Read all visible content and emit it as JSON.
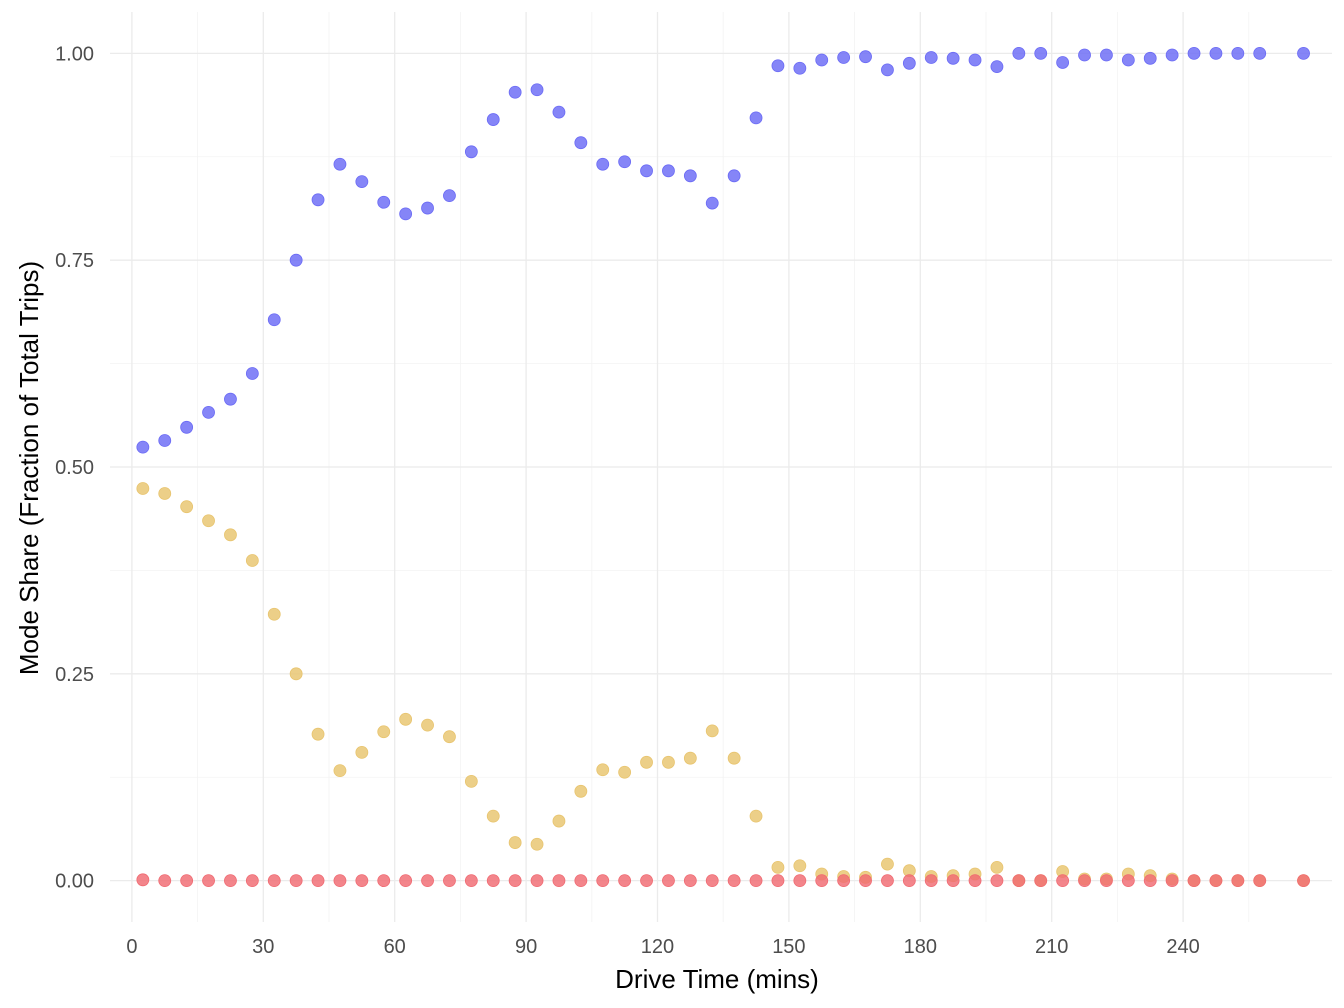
{
  "chart_data": {
    "type": "scatter",
    "title": "",
    "xlabel": "Drive Time (mins)",
    "ylabel": "Mode Share (Fraction of Total Trips)",
    "xlim": [
      -5,
      274
    ],
    "ylim": [
      -0.05,
      1.05
    ],
    "x_ticks": [
      0,
      30,
      60,
      90,
      120,
      150,
      180,
      210,
      240
    ],
    "y_ticks": [
      0,
      0.25,
      0.5,
      0.75,
      1.0
    ],
    "y_tick_labels": [
      "0.00",
      "0.25",
      "0.50",
      "0.75",
      "1.00"
    ],
    "grid": true,
    "legend": "none",
    "x": [
      2.5,
      7.5,
      12.5,
      17.5,
      22.5,
      27.5,
      32.5,
      37.5,
      42.5,
      47.5,
      52.5,
      57.5,
      62.5,
      67.5,
      72.5,
      77.5,
      82.5,
      87.5,
      92.5,
      97.5,
      102.5,
      107.5,
      112.5,
      117.5,
      122.5,
      127.5,
      132.5,
      137.5,
      142.5,
      147.5,
      152.5,
      157.5,
      162.5,
      167.5,
      172.5,
      177.5,
      182.5,
      187.5,
      192.5,
      197.5,
      202.5,
      207.5,
      212.5,
      217.5,
      222.5,
      227.5,
      232.5,
      237.5,
      242.5,
      247.5,
      252.5,
      257.5,
      267.5
    ],
    "series": [
      {
        "color": "#6a6af5",
        "values": [
          0.524,
          0.532,
          0.548,
          0.566,
          0.582,
          0.613,
          0.678,
          0.75,
          0.823,
          0.866,
          0.845,
          0.82,
          0.806,
          0.813,
          0.828,
          0.881,
          0.92,
          0.953,
          0.956,
          0.929,
          0.892,
          0.866,
          0.869,
          0.858,
          0.858,
          0.852,
          0.819,
          0.852,
          0.922,
          0.985,
          0.982,
          0.992,
          0.995,
          0.996,
          0.98,
          0.988,
          0.995,
          0.994,
          0.992,
          0.984,
          1.0,
          1.0,
          0.989,
          0.998,
          0.998,
          0.992,
          0.994,
          0.998,
          1.0,
          1.0,
          1.0,
          1.0,
          1.0
        ]
      },
      {
        "color": "#e8c46e",
        "values": [
          0.474,
          0.468,
          0.452,
          0.435,
          0.418,
          0.387,
          0.322,
          0.25,
          0.177,
          0.133,
          0.155,
          0.18,
          0.195,
          0.188,
          0.174,
          0.12,
          0.078,
          0.046,
          0.044,
          0.072,
          0.108,
          0.134,
          0.131,
          0.143,
          0.143,
          0.148,
          0.181,
          0.148,
          0.078,
          0.016,
          0.018,
          0.008,
          0.005,
          0.004,
          0.02,
          0.012,
          0.005,
          0.006,
          0.008,
          0.016,
          0.0,
          0.0,
          0.011,
          0.002,
          0.002,
          0.008,
          0.006,
          0.002,
          0.0,
          0.0,
          0.0,
          0.0,
          0.0
        ]
      },
      {
        "color": "#f06a72",
        "values": [
          0.001,
          0.0,
          0.0,
          0.0,
          0.0,
          0.0,
          0.0,
          0.0,
          0.0,
          0.0,
          0.0,
          0.0,
          0.0,
          0.0,
          0.0,
          0.0,
          0.0,
          0.0,
          0.0,
          0.0,
          0.0,
          0.0,
          0.0,
          0.0,
          0.0,
          0.0,
          0.0,
          0.0,
          0.0,
          0.0,
          0.0,
          0.0,
          0.0,
          0.0,
          0.0,
          0.0,
          0.0,
          0.0,
          0.0,
          0.0,
          0.0,
          0.0,
          0.0,
          0.0,
          0.0,
          0.0,
          0.0,
          0.0,
          0.0,
          0.0,
          0.0,
          0.0,
          0.0
        ]
      }
    ]
  }
}
